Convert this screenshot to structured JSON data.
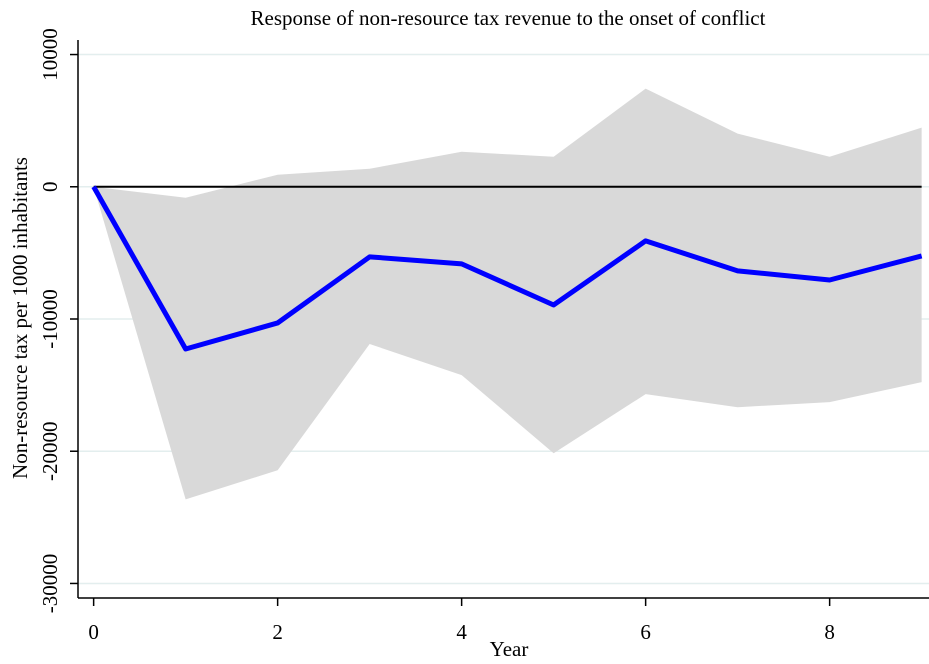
{
  "chart_data": {
    "type": "line",
    "title": "Response of non-resource tax revenue to the onset of conflict",
    "x_label": "Year",
    "y_label": "Non-resource tax per 1000 inhabitants",
    "x": [
      0,
      1,
      2,
      3,
      4,
      5,
      6,
      7,
      8,
      9
    ],
    "mean": {
      "color": "#0000ff",
      "values": [
        0,
        -12270,
        -10300,
        -5300,
        -5830,
        -8940,
        -4090,
        -6360,
        -7050,
        -5230
      ]
    },
    "band": {
      "color": "#d9d9d9",
      "upper": [
        0,
        -830,
        910,
        1360,
        2650,
        2270,
        7420,
        4020,
        2270,
        4470
      ],
      "lower": [
        0,
        -23640,
        -21440,
        -11890,
        -14240,
        -20150,
        -15680,
        -16670,
        -16290,
        -14770
      ]
    },
    "reference_line": {
      "value": 0,
      "color": "#000000"
    },
    "xlim": [
      -0.17,
      9.08
    ],
    "ylim": [
      -31100,
      11100
    ],
    "xticks": [
      0,
      2,
      4,
      6,
      8
    ],
    "yticks": [
      -30000,
      -20000,
      -10000,
      0,
      10000
    ],
    "grid": true,
    "grid_color": "#e3eeee"
  }
}
